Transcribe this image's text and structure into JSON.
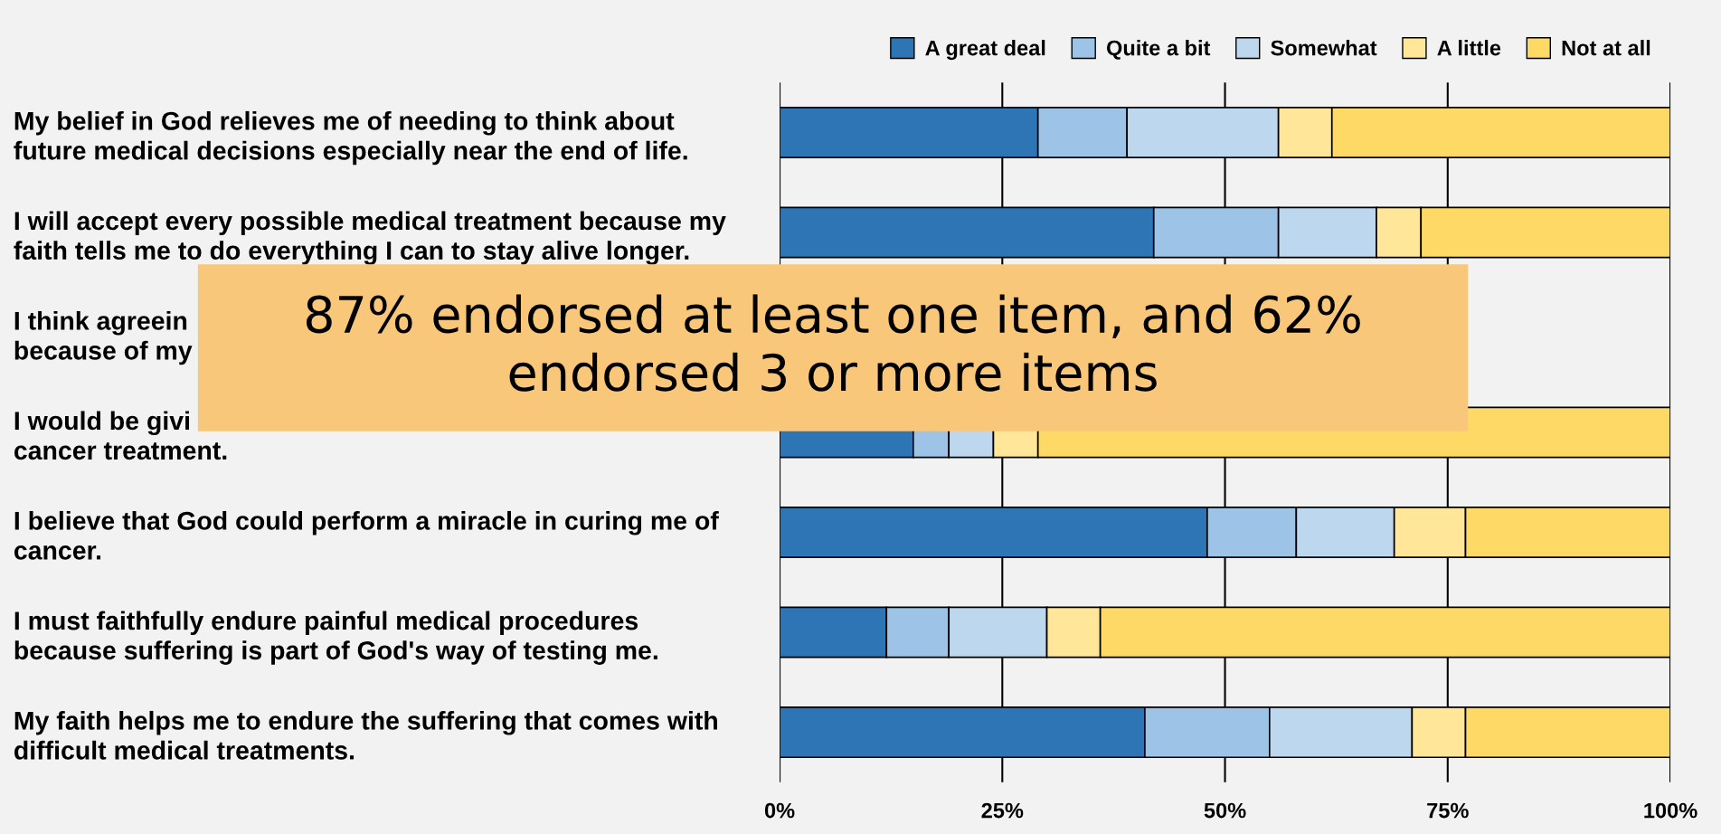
{
  "chart_data": {
    "type": "bar",
    "orientation": "horizontal",
    "stacked": true,
    "categories": [
      "My belief in God relieves me of needing to think about\nfuture medical decisions especially near the end of life.",
      "I will accept every possible medical treatment because my\nfaith tells me to do everything I can to stay alive longer.",
      "I think agreein\nbecause of my",
      "I would be givi\ncancer treatment.",
      "I believe that God could perform a miracle in curing me of\ncancer.",
      "I must faithfully endure painful medical procedures\nbecause suffering is part of God's way of testing me.",
      "My faith helps me to endure the suffering that comes with\ndifficult medical treatments."
    ],
    "series": [
      {
        "name": "A great deal",
        "color": "#2e75b6",
        "values": [
          29,
          42,
          null,
          15,
          48,
          12,
          41
        ]
      },
      {
        "name": "Quite a bit",
        "color": "#9dc3e6",
        "values": [
          10,
          14,
          null,
          4,
          10,
          7,
          14
        ]
      },
      {
        "name": "Somewhat",
        "color": "#bdd7ee",
        "values": [
          17,
          11,
          null,
          5,
          11,
          11,
          16
        ]
      },
      {
        "name": "A little",
        "color": "#ffe699",
        "values": [
          6,
          5,
          null,
          5,
          8,
          6,
          6
        ]
      },
      {
        "name": "Not at all",
        "color": "#ffd966",
        "values": [
          38,
          28,
          null,
          71,
          23,
          64,
          23
        ]
      }
    ],
    "xlim": [
      0,
      100
    ],
    "xticks": [
      {
        "value": 0,
        "label": "0%"
      },
      {
        "value": 25,
        "label": "25%"
      },
      {
        "value": 50,
        "label": "50%"
      },
      {
        "value": 75,
        "label": "75%"
      },
      {
        "value": 100,
        "label": "100%"
      }
    ],
    "grid": "x",
    "legend": "top",
    "annotations": [
      "87% endorsed at least one item, and 62%\nendorsed 3 or more items"
    ]
  }
}
